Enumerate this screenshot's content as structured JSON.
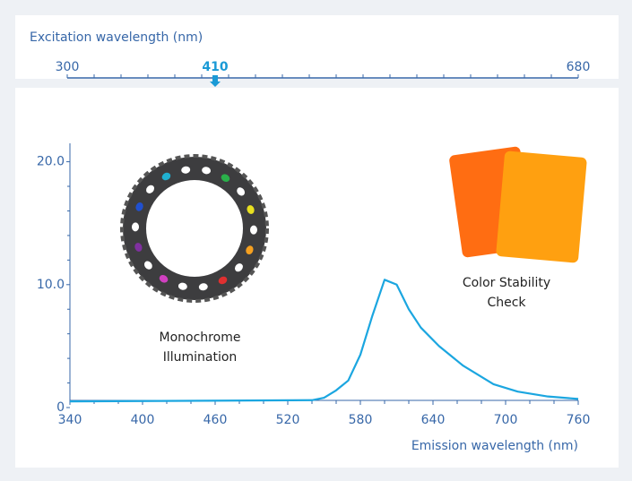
{
  "slider": {
    "label": "Excitation wavelength (nm)",
    "min": 300,
    "max": 680,
    "value": 410,
    "ticks": [
      300,
      320,
      340,
      360,
      380,
      400,
      420,
      440,
      460,
      480,
      500,
      520,
      540,
      560,
      580,
      600,
      620,
      640,
      660,
      680
    ]
  },
  "chart_data": {
    "type": "line",
    "x": [
      340,
      540,
      550,
      560,
      570,
      580,
      590,
      600,
      610,
      620,
      630,
      645,
      665,
      690,
      710,
      735,
      760
    ],
    "series": [
      {
        "color": "#1ba6e0",
        "values": [
          0.5,
          0.6,
          0.8,
          1.4,
          2.2,
          4.3,
          7.5,
          10.4,
          10.0,
          8.0,
          6.5,
          5.0,
          3.4,
          1.9,
          1.3,
          0.9,
          0.7
        ]
      }
    ],
    "xlim": [
      340,
      760
    ],
    "ylim": [
      0,
      21.5
    ],
    "xticks": [
      340,
      400,
      460,
      520,
      580,
      640,
      700,
      760
    ],
    "xminorticks": [
      360,
      380,
      420,
      440,
      480,
      500,
      540,
      560,
      600,
      620,
      660,
      680,
      720,
      740
    ],
    "yticks": [
      0,
      {
        "value": 10,
        "label": "10.0"
      },
      {
        "value": 20,
        "label": "20.0"
      }
    ],
    "yminorticks": [
      2,
      4,
      6,
      8,
      12,
      14,
      16,
      18
    ],
    "xlabel": "Emission wavelength (nm)",
    "annotations": [
      {
        "lines": [
          "Monochrome",
          "Illumination"
        ]
      },
      {
        "lines": [
          "Color Stability",
          "Check"
        ]
      }
    ]
  }
}
